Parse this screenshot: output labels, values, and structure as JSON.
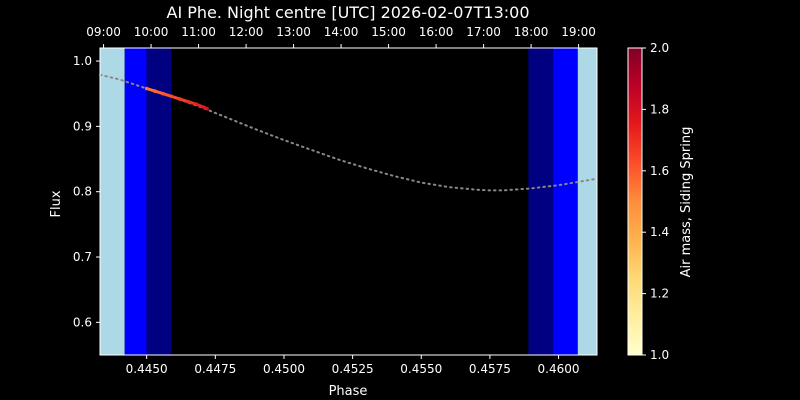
{
  "chart_data": {
    "type": "scatter",
    "title": "AI Phe. Night centre [UTC] 2026-02-07T13:00",
    "xlabel": "Phase",
    "ylabel": "Flux",
    "xlim": [
      0.4433,
      0.4614
    ],
    "ylim": [
      0.55,
      1.02
    ],
    "xticks": [
      0.445,
      0.4475,
      0.45,
      0.4525,
      0.455,
      0.4575,
      0.46
    ],
    "xtick_labels": [
      "0.4450",
      "0.4475",
      "0.4500",
      "0.4525",
      "0.4550",
      "0.4575",
      "0.4600"
    ],
    "yticks": [
      0.6,
      0.7,
      0.8,
      0.9,
      1.0
    ],
    "ytick_labels": [
      "0.6",
      "0.7",
      "0.8",
      "0.9",
      "1.0"
    ],
    "top_axis": {
      "labels": [
        "09:00",
        "10:00",
        "11:00",
        "12:00",
        "13:00",
        "14:00",
        "15:00",
        "16:00",
        "17:00",
        "18:00",
        "19:00"
      ],
      "phase_positions": [
        0.44343,
        0.44516,
        0.44689,
        0.44862,
        0.45035,
        0.45208,
        0.45381,
        0.45554,
        0.45727,
        0.459,
        0.46073
      ]
    },
    "bands": [
      {
        "name": "twilight-light-left",
        "x0": 0.4433,
        "x1": 0.4442,
        "color": "#add8e6"
      },
      {
        "name": "twilight-blue-left",
        "x0": 0.4442,
        "x1": 0.445,
        "color": "#0000ff"
      },
      {
        "name": "twilight-navy-left",
        "x0": 0.445,
        "x1": 0.4459,
        "color": "#000080"
      },
      {
        "name": "twilight-navy-right",
        "x0": 0.4589,
        "x1": 0.4598,
        "color": "#000080"
      },
      {
        "name": "twilight-blue-right",
        "x0": 0.4598,
        "x1": 0.4607,
        "color": "#0000ff"
      },
      {
        "name": "twilight-light-right",
        "x0": 0.4607,
        "x1": 0.4614,
        "color": "#add8e6"
      }
    ],
    "model_curve": {
      "color": "#888888",
      "x": [
        0.4433,
        0.444,
        0.445,
        0.446,
        0.447,
        0.448,
        0.449,
        0.45,
        0.451,
        0.452,
        0.453,
        0.454,
        0.455,
        0.456,
        0.457,
        0.4575,
        0.458,
        0.459,
        0.46,
        0.461,
        0.4614
      ],
      "y": [
        0.979,
        0.972,
        0.958,
        0.944,
        0.929,
        0.912,
        0.895,
        0.879,
        0.864,
        0.849,
        0.836,
        0.824,
        0.814,
        0.807,
        0.803,
        0.802,
        0.802,
        0.805,
        0.81,
        0.817,
        0.82
      ]
    },
    "observed": {
      "x": [
        0.445,
        0.4453,
        0.4456,
        0.4459,
        0.4462,
        0.4465,
        0.4468,
        0.4471,
        0.4472
      ],
      "y": [
        0.958,
        0.954,
        0.95,
        0.946,
        0.942,
        0.938,
        0.934,
        0.929,
        0.927
      ],
      "airmass": [
        1.55,
        1.58,
        1.61,
        1.64,
        1.67,
        1.7,
        1.73,
        1.76,
        1.78
      ]
    },
    "colorbar": {
      "label": "Air mass, Siding Spring",
      "range": [
        1.0,
        2.0
      ],
      "ticks": [
        1.0,
        1.2,
        1.4,
        1.6,
        1.8,
        2.0
      ],
      "tick_labels": [
        "1.0",
        "1.2",
        "1.4",
        "1.6",
        "1.8",
        "2.0"
      ],
      "colormap": "YlOrRd",
      "stops": [
        "#ffffcc",
        "#ffeda0",
        "#fed976",
        "#feb24c",
        "#fd8d3c",
        "#fc4e2a",
        "#e31a1c",
        "#bd0026",
        "#800026"
      ]
    },
    "grid": false,
    "legend": "none"
  }
}
